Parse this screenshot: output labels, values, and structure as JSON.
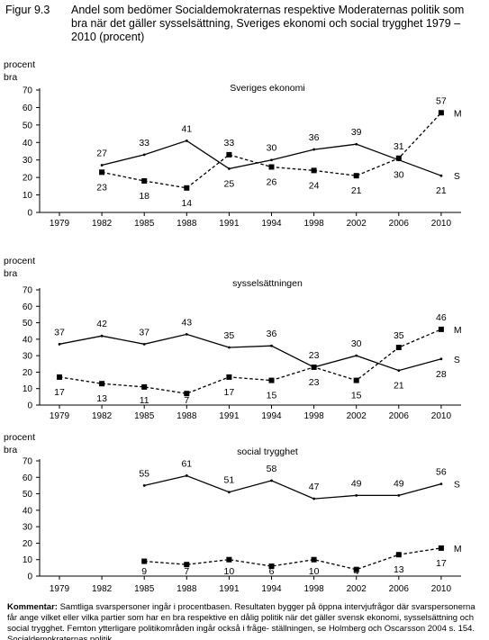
{
  "figure": {
    "label": "Figur  9.3",
    "title": "Andel som bedömer Socialdemokraternas respektive Moderaternas politik som bra när det gäller sysselsättning, Sveriges ekonomi och social trygghet 1979 – 2010 (procent)"
  },
  "comment": {
    "label": "Kommentar:",
    "text": "Samtliga svarspersoner ingår i procentbasen. Resultaten bygger på öppna intervjufrågor där svarspersonerna får ange vilket eller vilka partier som har en bra respektive en dålig politik när det gäller svensk ekonomi, sysselsättning och social trygghet. Femton ytterligare politikområden ingår också i fråge- ställningen, se Holmberg och Oscarsson 2004 s. 154. Socialdemokraternas politik"
  },
  "chart_data": [
    {
      "type": "line",
      "title": "Sveriges ekonomi",
      "ylabel": "procent bra",
      "ylim": [
        0,
        70
      ],
      "yticks": [
        0,
        10,
        20,
        30,
        40,
        50,
        60,
        70
      ],
      "categories": [
        "1979",
        "1982",
        "1985",
        "1988",
        "1991",
        "1994",
        "1998",
        "2002",
        "2006",
        "2010"
      ],
      "grid": false,
      "series": [
        {
          "name": "S",
          "style": "solid",
          "marker": "none",
          "values": [
            null,
            27,
            33,
            41,
            25,
            30,
            36,
            39,
            30,
            21
          ],
          "labels": [
            null,
            "27",
            "33",
            "41",
            "25",
            "30",
            "36",
            "39",
            "30",
            "21"
          ]
        },
        {
          "name": "M",
          "style": "dashed",
          "marker": "square",
          "values": [
            null,
            23,
            18,
            14,
            33,
            26,
            24,
            21,
            31,
            57
          ],
          "labels": [
            null,
            "23",
            "18",
            "14",
            "33",
            "26",
            "24",
            "21",
            "31",
            "57"
          ]
        }
      ]
    },
    {
      "type": "line",
      "title": "sysselsättningen",
      "ylabel": "procent bra",
      "ylim": [
        0,
        70
      ],
      "yticks": [
        0,
        10,
        20,
        30,
        40,
        50,
        60,
        70
      ],
      "categories": [
        "1979",
        "1982",
        "1985",
        "1988",
        "1991",
        "1994",
        "1998",
        "2002",
        "2006",
        "2010"
      ],
      "grid": false,
      "series": [
        {
          "name": "S",
          "style": "solid",
          "marker": "none",
          "values": [
            37,
            42,
            37,
            43,
            35,
            36,
            23,
            30,
            21,
            28
          ],
          "labels": [
            "37",
            "42",
            "37",
            "43",
            "35",
            "36",
            "23",
            "30",
            "21",
            "28"
          ]
        },
        {
          "name": "M",
          "style": "dashed",
          "marker": "square",
          "values": [
            17,
            13,
            11,
            7,
            17,
            15,
            23,
            15,
            35,
            46
          ],
          "labels": [
            "17",
            "13",
            "11",
            "7",
            "17",
            "15",
            "23",
            "15",
            "35",
            "46"
          ]
        }
      ]
    },
    {
      "type": "line",
      "title": "social trygghet",
      "ylabel": "procent bra",
      "ylim": [
        0,
        70
      ],
      "yticks": [
        0,
        10,
        20,
        30,
        40,
        50,
        60,
        70
      ],
      "categories": [
        "1979",
        "1982",
        "1985",
        "1988",
        "1991",
        "1994",
        "1998",
        "2002",
        "2006",
        "2010"
      ],
      "grid": false,
      "series": [
        {
          "name": "S",
          "style": "solid",
          "marker": "none",
          "values": [
            null,
            null,
            55,
            61,
            51,
            58,
            47,
            49,
            49,
            56
          ],
          "labels": [
            null,
            null,
            "55",
            "61",
            "51",
            "58",
            "47",
            "49",
            "49",
            "56"
          ]
        },
        {
          "name": "M",
          "style": "dashed",
          "marker": "square",
          "values": [
            null,
            null,
            9,
            7,
            10,
            6,
            10,
            4,
            13,
            17
          ],
          "labels": [
            null,
            null,
            "9",
            "7",
            "10",
            "6",
            "10",
            "4",
            "13",
            "17"
          ]
        }
      ]
    }
  ]
}
